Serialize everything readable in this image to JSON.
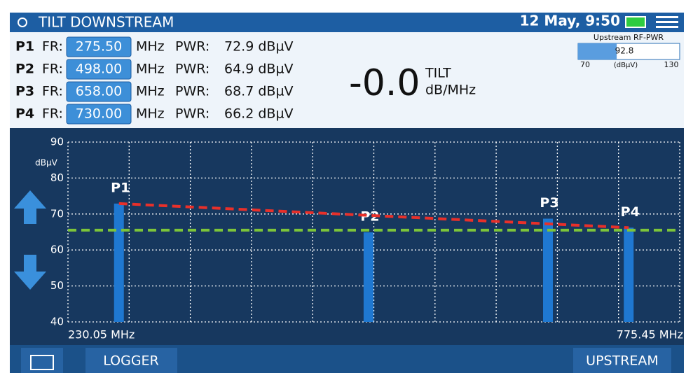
{
  "header": {
    "title": "TILT DOWNSTREAM",
    "datetime": "12 May, 9:50"
  },
  "markers": [
    {
      "name": "P1",
      "fr_label": "FR:",
      "fr": "275.50",
      "fr_unit": "MHz",
      "pwr_label": "PWR:",
      "pwr": "72.9 dBµV"
    },
    {
      "name": "P2",
      "fr_label": "FR:",
      "fr": "498.00",
      "fr_unit": "MHz",
      "pwr_label": "PWR:",
      "pwr": "64.9 dBµV"
    },
    {
      "name": "P3",
      "fr_label": "FR:",
      "fr": "658.00",
      "fr_unit": "MHz",
      "pwr_label": "PWR:",
      "pwr": "68.7 dBµV"
    },
    {
      "name": "P4",
      "fr_label": "FR:",
      "fr": "730.00",
      "fr_unit": "MHz",
      "pwr_label": "PWR:",
      "pwr": "66.2 dBµV"
    }
  ],
  "tilt": {
    "value": "-0.0",
    "label": "TILT",
    "unit": "dB/MHz"
  },
  "upstream": {
    "title": "Upstream RF-PWR",
    "value": 92.8,
    "range": [
      70,
      130
    ],
    "unit": "(dBµV)"
  },
  "chart_data": {
    "type": "bar",
    "categories": [
      "P1",
      "P2",
      "P3",
      "P4"
    ],
    "x": [
      275.5,
      498,
      658,
      730
    ],
    "series": [
      {
        "name": "PWR",
        "color": "#1f78d1",
        "values": [
          72.9,
          64.9,
          68.7,
          66.2
        ]
      }
    ],
    "reference": 65.5,
    "ylabel": "dBµV",
    "ylim": [
      40,
      90
    ],
    "yticks": [
      40,
      50,
      60,
      70,
      80,
      90
    ],
    "xlim": [
      230.05,
      775.45
    ],
    "xticks": [
      {
        "value": 230.05,
        "label": "230.05 MHz"
      },
      {
        "value": 775.45,
        "label": "775.45 MHz"
      }
    ],
    "grid": true
  },
  "footer": {
    "logger": "LOGGER",
    "upstream": "UPSTREAM"
  }
}
